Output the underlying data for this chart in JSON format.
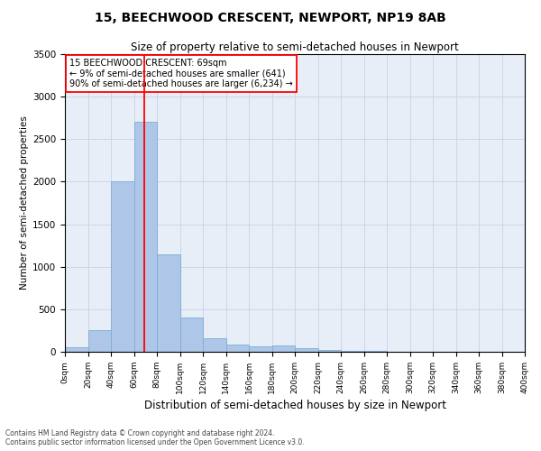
{
  "title": "15, BEECHWOOD CRESCENT, NEWPORT, NP19 8AB",
  "subtitle": "Size of property relative to semi-detached houses in Newport",
  "xlabel": "Distribution of semi-detached houses by size in Newport",
  "ylabel": "Number of semi-detached properties",
  "footer_line1": "Contains HM Land Registry data © Crown copyright and database right 2024.",
  "footer_line2": "Contains public sector information licensed under the Open Government Licence v3.0.",
  "annotation_title": "15 BEECHWOOD CRESCENT: 69sqm",
  "annotation_line1": "← 9% of semi-detached houses are smaller (641)",
  "annotation_line2": "90% of semi-detached houses are larger (6,234) →",
  "vline_x": 69,
  "bar_color": "#aec6e8",
  "bar_edge_color": "#7aafd4",
  "vline_color": "red",
  "annotation_box_color": "red",
  "grid_color": "#ccd6e8",
  "bg_color": "#e8eef8",
  "ylim": [
    0,
    3500
  ],
  "yticks": [
    0,
    500,
    1000,
    1500,
    2000,
    2500,
    3000,
    3500
  ],
  "bin_edges": [
    0,
    20,
    40,
    60,
    80,
    100,
    120,
    140,
    160,
    180,
    200,
    220,
    240,
    260,
    280,
    300,
    320,
    340,
    360,
    380,
    400
  ],
  "bar_heights": [
    50,
    250,
    2000,
    2700,
    1150,
    400,
    160,
    90,
    65,
    70,
    40,
    20,
    10,
    8,
    5,
    3,
    2,
    1,
    0,
    0
  ],
  "title_fontsize": 10,
  "subtitle_fontsize": 8.5,
  "ylabel_fontsize": 7.5,
  "xlabel_fontsize": 8.5,
  "ytick_fontsize": 7.5,
  "xtick_fontsize": 6.5,
  "annotation_fontsize": 7,
  "footer_fontsize": 5.5
}
